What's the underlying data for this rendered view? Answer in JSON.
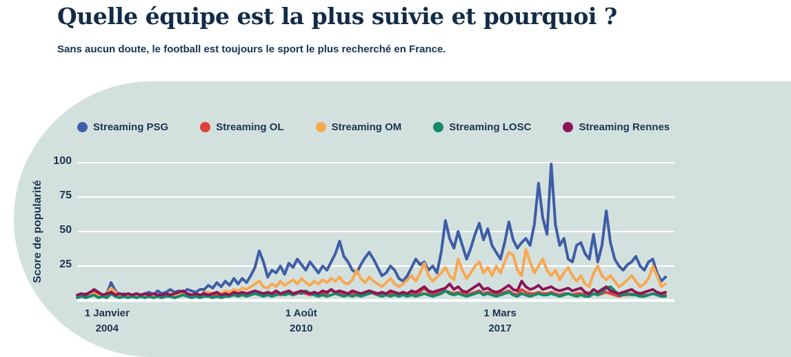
{
  "header": {
    "title": "Quelle équipe est la plus suivie et pourquoi ?",
    "subtitle": "Sans aucun doute, le football est toujours le sport le plus recherché en France."
  },
  "panel_color": "#d3e1de",
  "chart_data": {
    "type": "line",
    "title": "",
    "xlabel": "",
    "ylabel": "Score de popularité",
    "ylim": [
      0,
      105
    ],
    "yticks": [
      25,
      50,
      75,
      100
    ],
    "grid": "horizontal-white",
    "legend_position": "top",
    "xticks": [
      {
        "line1": "1 Janvier",
        "line2": "2004",
        "pos": 0.05
      },
      {
        "line1": "1 Août",
        "line2": "2010",
        "pos": 0.375
      },
      {
        "line1": "1 Mars",
        "line2": "2017",
        "pos": 0.708
      }
    ],
    "x_start": "1 Janvier 2004",
    "series": [
      {
        "name": "Streaming PSG",
        "color": "#3e5da7",
        "values": [
          4,
          3,
          5,
          4,
          6,
          4,
          3,
          5,
          13,
          7,
          4,
          5,
          3,
          4,
          5,
          4,
          5,
          6,
          4,
          7,
          5,
          6,
          8,
          6,
          7,
          6,
          8,
          7,
          6,
          8,
          8,
          11,
          9,
          13,
          10,
          14,
          11,
          16,
          12,
          16,
          13,
          18,
          24,
          36,
          28,
          17,
          22,
          20,
          25,
          19,
          27,
          24,
          30,
          26,
          22,
          28,
          24,
          20,
          25,
          22,
          28,
          34,
          43,
          32,
          28,
          22,
          20,
          26,
          31,
          35,
          30,
          24,
          18,
          20,
          25,
          22,
          16,
          14,
          18,
          24,
          30,
          26,
          28,
          22,
          25,
          20,
          35,
          58,
          45,
          38,
          50,
          40,
          30,
          38,
          48,
          56,
          44,
          52,
          40,
          35,
          30,
          42,
          57,
          44,
          38,
          42,
          45,
          40,
          55,
          85,
          60,
          48,
          99,
          55,
          40,
          45,
          30,
          28,
          40,
          42,
          34,
          30,
          48,
          28,
          40,
          65,
          42,
          30,
          25,
          22,
          26,
          28,
          32,
          25,
          22,
          28,
          30,
          20,
          14,
          17
        ]
      },
      {
        "name": "Streaming OL",
        "color": "#df4337",
        "values": [
          3,
          4,
          3,
          5,
          6,
          4,
          3,
          4,
          7,
          5,
          3,
          4,
          3,
          4,
          3,
          4,
          3,
          4,
          3,
          4,
          3,
          4,
          4,
          3,
          4,
          5,
          4,
          3,
          4,
          3,
          6,
          4,
          3,
          4,
          3,
          4,
          4,
          5,
          4,
          5,
          4,
          5,
          6,
          5,
          4,
          5,
          4,
          5,
          4,
          5,
          6,
          4,
          5,
          6,
          5,
          4,
          5,
          4,
          6,
          5,
          8,
          5,
          6,
          5,
          4,
          5,
          5,
          4,
          5,
          6,
          5,
          4,
          4,
          5,
          5,
          4,
          4,
          5,
          4,
          5,
          5,
          6,
          9,
          6,
          5,
          5,
          6,
          7,
          6,
          5,
          6,
          5,
          4,
          5,
          6,
          7,
          5,
          6,
          5,
          4,
          5,
          6,
          7,
          5,
          4,
          8,
          6,
          5,
          5,
          6,
          5,
          5,
          6,
          5,
          4,
          5,
          5,
          4,
          5,
          5,
          4,
          3,
          5,
          4,
          5,
          6,
          5,
          4,
          3,
          4,
          4,
          5,
          4,
          3,
          4,
          4,
          5,
          4,
          3,
          4
        ]
      },
      {
        "name": "Streaming OM",
        "color": "#f9a751",
        "values": [
          3,
          4,
          3,
          4,
          5,
          3,
          4,
          5,
          9,
          6,
          4,
          3,
          4,
          3,
          4,
          3,
          4,
          3,
          4,
          4,
          3,
          4,
          5,
          4,
          5,
          4,
          5,
          4,
          5,
          4,
          5,
          6,
          5,
          6,
          5,
          7,
          6,
          8,
          7,
          9,
          8,
          10,
          12,
          14,
          10,
          9,
          12,
          10,
          14,
          11,
          13,
          15,
          12,
          16,
          13,
          11,
          14,
          12,
          15,
          13,
          16,
          14,
          17,
          13,
          12,
          15,
          22,
          16,
          13,
          17,
          14,
          12,
          10,
          13,
          16,
          12,
          10,
          12,
          15,
          18,
          14,
          20,
          27,
          18,
          14,
          17,
          20,
          24,
          18,
          15,
          30,
          22,
          16,
          20,
          25,
          28,
          20,
          24,
          18,
          25,
          20,
          28,
          35,
          33,
          22,
          18,
          37,
          28,
          20,
          25,
          30,
          22,
          18,
          22,
          15,
          20,
          24,
          18,
          14,
          18,
          12,
          10,
          20,
          25,
          18,
          15,
          18,
          14,
          10,
          12,
          15,
          18,
          14,
          10,
          12,
          16,
          25,
          18,
          10,
          12
        ]
      },
      {
        "name": "Streaming LOSC",
        "color": "#15896c",
        "values": [
          2,
          3,
          2,
          3,
          4,
          2,
          3,
          2,
          5,
          3,
          2,
          3,
          2,
          3,
          2,
          3,
          2,
          3,
          2,
          3,
          2,
          3,
          3,
          2,
          3,
          4,
          3,
          2,
          3,
          2,
          3,
          3,
          2,
          3,
          2,
          3,
          3,
          4,
          3,
          4,
          3,
          4,
          5,
          4,
          3,
          4,
          3,
          4,
          5,
          4,
          5,
          4,
          6,
          5,
          7,
          5,
          4,
          3,
          4,
          3,
          4,
          5,
          4,
          3,
          4,
          3,
          4,
          3,
          4,
          5,
          6,
          4,
          3,
          4,
          3,
          4,
          3,
          4,
          3,
          4,
          3,
          4,
          5,
          4,
          3,
          4,
          5,
          7,
          5,
          4,
          5,
          4,
          3,
          4,
          5,
          6,
          4,
          5,
          4,
          3,
          4,
          5,
          6,
          4,
          3,
          5,
          4,
          3,
          4,
          5,
          4,
          4,
          5,
          4,
          3,
          4,
          5,
          4,
          3,
          4,
          3,
          3,
          5,
          4,
          6,
          9,
          10,
          7,
          4,
          4,
          5,
          4,
          4,
          3,
          3,
          4,
          5,
          4,
          3,
          3
        ]
      },
      {
        "name": "Streaming Rennes",
        "color": "#8c1557",
        "values": [
          4,
          5,
          4,
          6,
          8,
          6,
          4,
          5,
          6,
          4,
          5,
          4,
          5,
          4,
          5,
          4,
          5,
          4,
          5,
          4,
          4,
          5,
          4,
          5,
          6,
          7,
          5,
          4,
          5,
          4,
          5,
          4,
          5,
          6,
          4,
          5,
          4,
          6,
          5,
          6,
          5,
          6,
          7,
          6,
          5,
          6,
          5,
          7,
          5,
          6,
          7,
          5,
          6,
          7,
          6,
          5,
          6,
          5,
          7,
          6,
          8,
          6,
          7,
          6,
          5,
          7,
          6,
          5,
          6,
          7,
          6,
          5,
          6,
          5,
          7,
          6,
          5,
          6,
          5,
          7,
          6,
          8,
          10,
          7,
          6,
          7,
          8,
          9,
          12,
          8,
          10,
          7,
          6,
          8,
          10,
          12,
          8,
          9,
          7,
          6,
          7,
          9,
          11,
          8,
          7,
          14,
          10,
          8,
          9,
          11,
          8,
          9,
          10,
          8,
          7,
          8,
          9,
          7,
          8,
          9,
          6,
          5,
          8,
          6,
          8,
          10,
          7,
          6,
          5,
          6,
          7,
          8,
          6,
          5,
          6,
          7,
          8,
          6,
          5,
          6
        ]
      }
    ]
  }
}
